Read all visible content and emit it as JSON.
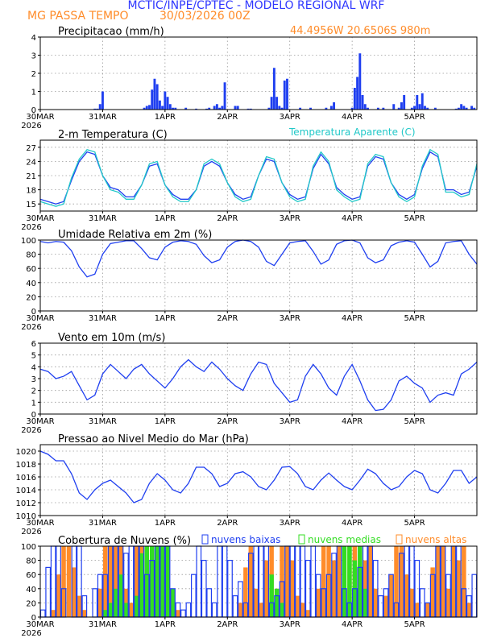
{
  "header": {
    "title": "MCTIC/INPE/CPTEC - MODELO REGIONAL WRF",
    "location": "MG PASSA TEMPO",
    "run": "30/03/2026 00Z",
    "coords": "44.4956W 20.6506S 980m"
  },
  "colors": {
    "title": "#2f37ff",
    "orange": "#ff8c2a",
    "blue": "#1f3ff0",
    "cyan": "#21c8c8",
    "green": "#33dd22",
    "black": "#000000",
    "grid": "#9a9a9a"
  },
  "xaxis": {
    "days": [
      "30MAR",
      "31MAR",
      "1APR",
      "2APR",
      "3APR",
      "4APR",
      "5APR"
    ],
    "year": "2026",
    "hours_total": 168
  },
  "chart_data": [
    {
      "type": "bar",
      "id": "precip",
      "title": "Precipitacao (mm/h)",
      "ylim": [
        0,
        4
      ],
      "yticks": [
        0,
        1,
        2,
        3,
        4
      ],
      "x_hours": [
        21,
        22,
        23,
        24,
        40,
        41,
        42,
        43,
        44,
        45,
        46,
        47,
        48,
        49,
        50,
        51,
        52,
        56,
        60,
        64,
        65,
        67,
        68,
        69,
        70,
        71,
        75,
        76,
        80,
        81,
        88,
        89,
        90,
        91,
        92,
        93,
        94,
        95,
        100,
        104,
        110,
        112,
        113,
        120,
        121,
        122,
        123,
        124,
        125,
        126,
        130,
        132,
        136,
        138,
        139,
        140,
        143,
        144,
        145,
        146,
        147,
        148,
        149,
        152,
        160,
        161,
        162,
        163,
        164,
        166,
        167
      ],
      "values": [
        0.05,
        0.05,
        0.3,
        1.0,
        0.1,
        0.2,
        0.25,
        1.1,
        1.7,
        1.4,
        0.5,
        0.2,
        1.0,
        0.7,
        0.3,
        0.1,
        0.1,
        0.1,
        0.05,
        0.05,
        0.1,
        0.2,
        0.3,
        0.1,
        0.2,
        1.5,
        0.2,
        0.2,
        0.05,
        0.05,
        0.1,
        0.7,
        2.3,
        0.7,
        0.2,
        0.1,
        1.6,
        1.7,
        0.1,
        0.1,
        0.1,
        0.2,
        0.4,
        0.1,
        1.2,
        1.8,
        3.1,
        0.8,
        0.3,
        0.1,
        0.1,
        0.1,
        0.3,
        0.1,
        0.4,
        0.8,
        0.1,
        0.2,
        0.8,
        0.3,
        0.9,
        0.2,
        0.1,
        0.1,
        0.05,
        0.1,
        0.3,
        0.2,
        0.1,
        0.2,
        0.1
      ],
      "color": "#1f3ff0"
    },
    {
      "type": "line",
      "id": "temp",
      "title": "2-m Temperatura (C)",
      "legend": "Temperatura Aparente (C)",
      "ylim": [
        13.5,
        28.5
      ],
      "yticks": [
        15,
        18,
        21,
        24,
        27
      ],
      "series": [
        {
          "name": "2-m Temperatura (C)",
          "color": "#1f3ff0",
          "x": [
            0,
            3,
            6,
            9,
            12,
            15,
            18,
            21,
            24,
            27,
            30,
            33,
            36,
            39,
            42,
            45,
            48,
            51,
            54,
            57,
            60,
            63,
            66,
            69,
            72,
            75,
            78,
            81,
            84,
            87,
            90,
            93,
            96,
            99,
            102,
            105,
            108,
            111,
            114,
            117,
            120,
            123,
            126,
            129,
            132,
            135,
            138,
            141,
            144,
            147,
            150,
            153,
            156,
            159,
            162,
            165,
            168
          ],
          "values": [
            16,
            15.5,
            15,
            15.5,
            20,
            24,
            26,
            25.5,
            21,
            18.5,
            18,
            16.5,
            16.5,
            19,
            23,
            23.5,
            19,
            17,
            16,
            16,
            18,
            23,
            24,
            23,
            19.5,
            17,
            16,
            16.5,
            21,
            24.5,
            24,
            19.5,
            17,
            16,
            16.5,
            22.5,
            25.5,
            23.5,
            18.5,
            17,
            16,
            16.5,
            23,
            25,
            24.5,
            19.5,
            17,
            16,
            17,
            22.5,
            26,
            25,
            18,
            18,
            17,
            17.5,
            23
          ]
        },
        {
          "name": "Temperatura Aparente (C)",
          "color": "#21c8c8",
          "x": [
            0,
            3,
            6,
            9,
            12,
            15,
            18,
            21,
            24,
            27,
            30,
            33,
            36,
            39,
            42,
            45,
            48,
            51,
            54,
            57,
            60,
            63,
            66,
            69,
            72,
            75,
            78,
            81,
            84,
            87,
            90,
            93,
            96,
            99,
            102,
            105,
            108,
            111,
            114,
            117,
            120,
            123,
            126,
            129,
            132,
            135,
            138,
            141,
            144,
            147,
            150,
            153,
            156,
            159,
            162,
            165,
            168
          ],
          "values": [
            15.5,
            15,
            14.5,
            15,
            20.5,
            24.5,
            26.5,
            26,
            21,
            18,
            17.5,
            16,
            16,
            19,
            23.5,
            24,
            19,
            16.5,
            15.5,
            15.5,
            18,
            23.5,
            24.5,
            23.5,
            19.5,
            16.5,
            15.5,
            16,
            21,
            25,
            24.5,
            19.5,
            16.5,
            15.5,
            16,
            23,
            26,
            24,
            18,
            16.5,
            15.5,
            16,
            23.5,
            25.5,
            25,
            19.5,
            16.5,
            15.5,
            16.5,
            23,
            26.5,
            25.5,
            17.5,
            17.5,
            16.5,
            17,
            23.5
          ]
        }
      ]
    },
    {
      "type": "line",
      "id": "umid",
      "title": "Umidade Relativa em 2m (%)",
      "ylim": [
        0,
        100
      ],
      "yticks": [
        0,
        20,
        40,
        60,
        80,
        100
      ],
      "series": [
        {
          "name": "Umidade Relativa em 2m (%)",
          "color": "#1f3ff0",
          "x": [
            0,
            3,
            6,
            9,
            12,
            15,
            18,
            21,
            24,
            27,
            30,
            33,
            36,
            39,
            42,
            45,
            48,
            51,
            54,
            57,
            60,
            63,
            66,
            69,
            72,
            75,
            78,
            81,
            84,
            87,
            90,
            93,
            96,
            99,
            102,
            105,
            108,
            111,
            114,
            117,
            120,
            123,
            126,
            129,
            132,
            135,
            138,
            141,
            144,
            147,
            150,
            153,
            156,
            159,
            162,
            165,
            168
          ],
          "values": [
            98,
            96,
            98,
            97,
            85,
            62,
            48,
            52,
            80,
            95,
            97,
            99,
            99,
            88,
            75,
            72,
            90,
            97,
            99,
            98,
            94,
            78,
            68,
            72,
            90,
            98,
            100,
            98,
            90,
            70,
            64,
            80,
            96,
            98,
            99,
            84,
            66,
            72,
            94,
            99,
            100,
            96,
            75,
            68,
            72,
            92,
            97,
            99,
            97,
            80,
            62,
            70,
            96,
            98,
            99,
            80,
            66
          ]
        }
      ]
    },
    {
      "type": "line",
      "id": "vento",
      "title": "Vento em 10m (m/s)",
      "ylim": [
        0,
        6
      ],
      "yticks": [
        0,
        1,
        2,
        3,
        4,
        5,
        6
      ],
      "series": [
        {
          "name": "Vento em 10m (m/s)",
          "color": "#1f3ff0",
          "x": [
            0,
            3,
            6,
            9,
            12,
            15,
            18,
            21,
            24,
            27,
            30,
            33,
            36,
            39,
            42,
            45,
            48,
            51,
            54,
            57,
            60,
            63,
            66,
            69,
            72,
            75,
            78,
            81,
            84,
            87,
            90,
            93,
            96,
            99,
            102,
            105,
            108,
            111,
            114,
            117,
            120,
            123,
            126,
            129,
            132,
            135,
            138,
            141,
            144,
            147,
            150,
            153,
            156,
            159,
            162,
            165,
            168
          ],
          "values": [
            3.8,
            3.6,
            3.0,
            3.2,
            3.6,
            2.4,
            1.2,
            1.6,
            3.4,
            4.2,
            3.6,
            3.0,
            3.8,
            4.2,
            3.4,
            2.8,
            2.2,
            3.0,
            4.0,
            4.6,
            4.0,
            3.6,
            4.4,
            3.8,
            3.0,
            2.4,
            2.0,
            3.4,
            4.4,
            4.2,
            2.6,
            1.8,
            1.0,
            1.2,
            3.2,
            4.2,
            3.4,
            2.2,
            1.6,
            3.2,
            4.2,
            2.8,
            1.2,
            0.3,
            0.4,
            1.2,
            2.8,
            3.2,
            2.6,
            2.2,
            1.0,
            1.6,
            1.8,
            1.6,
            3.4,
            3.8,
            4.4
          ]
        }
      ]
    },
    {
      "type": "line",
      "id": "pressao",
      "title": "Pressao ao Nivel Medio do Mar (hPa)",
      "ylim": [
        1010,
        1021
      ],
      "yticks": [
        1010,
        1012,
        1014,
        1016,
        1018,
        1020
      ],
      "series": [
        {
          "name": "Pressao ao Nivel Medio do Mar (hPa)",
          "color": "#1f3ff0",
          "x": [
            0,
            3,
            6,
            9,
            12,
            15,
            18,
            21,
            24,
            27,
            30,
            33,
            36,
            39,
            42,
            45,
            48,
            51,
            54,
            57,
            60,
            63,
            66,
            69,
            72,
            75,
            78,
            81,
            84,
            87,
            90,
            93,
            96,
            99,
            102,
            105,
            108,
            111,
            114,
            117,
            120,
            123,
            126,
            129,
            132,
            135,
            138,
            141,
            144,
            147,
            150,
            153,
            156,
            159,
            162,
            165,
            168
          ],
          "values": [
            1020,
            1019.5,
            1018.5,
            1018.5,
            1016.5,
            1013.5,
            1012.5,
            1014,
            1015,
            1015.5,
            1014.5,
            1013.5,
            1012,
            1012.5,
            1015,
            1016.5,
            1015.5,
            1014,
            1013.5,
            1015,
            1017.5,
            1017.5,
            1016.5,
            1014.5,
            1015,
            1016.5,
            1016.8,
            1016,
            1014.5,
            1014,
            1015.5,
            1017.5,
            1017.6,
            1016.5,
            1014.5,
            1014,
            1015.5,
            1016.6,
            1015.5,
            1014.5,
            1014,
            1015.5,
            1017.2,
            1016.5,
            1015,
            1014,
            1014.5,
            1016,
            1017,
            1016.5,
            1014,
            1013.5,
            1015,
            1017,
            1017,
            1015,
            1016
          ]
        }
      ]
    },
    {
      "type": "bar",
      "id": "nuvens",
      "title": "Cobertura de Nuvens (%)",
      "ylim": [
        0,
        100
      ],
      "yticks": [
        0,
        20,
        40,
        60,
        80,
        100
      ],
      "legend": [
        "nuvens baixas",
        "nuvens medias",
        "nuvens altas"
      ],
      "x_hours": [
        0,
        2,
        4,
        6,
        8,
        10,
        12,
        14,
        16,
        18,
        20,
        22,
        24,
        26,
        28,
        30,
        32,
        34,
        36,
        38,
        40,
        42,
        44,
        46,
        48,
        50,
        52,
        54,
        56,
        58,
        60,
        62,
        64,
        66,
        68,
        70,
        72,
        74,
        76,
        78,
        80,
        82,
        84,
        86,
        88,
        90,
        92,
        94,
        96,
        98,
        100,
        102,
        104,
        106,
        108,
        110,
        112,
        114,
        116,
        118,
        120,
        122,
        124,
        126,
        128,
        130,
        132,
        134,
        136,
        138,
        140,
        142,
        144,
        146,
        148,
        150,
        152,
        154,
        156,
        158,
        160,
        162,
        164,
        166
      ],
      "series": [
        {
          "name": "nuvens altas",
          "color": "#ff8c2a",
          "values": [
            0,
            0,
            10,
            60,
            100,
            100,
            70,
            30,
            10,
            0,
            0,
            40,
            100,
            100,
            100,
            100,
            40,
            20,
            100,
            100,
            100,
            100,
            60,
            100,
            100,
            30,
            10,
            0,
            0,
            0,
            0,
            0,
            0,
            0,
            0,
            0,
            0,
            0,
            20,
            70,
            100,
            40,
            20,
            80,
            100,
            40,
            100,
            100,
            80,
            30,
            20,
            10,
            0,
            40,
            100,
            100,
            80,
            100,
            40,
            100,
            100,
            100,
            80,
            100,
            40,
            0,
            30,
            60,
            100,
            100,
            60,
            40,
            20,
            0,
            20,
            70,
            100,
            100,
            40,
            100,
            80,
            100,
            20,
            0
          ]
        },
        {
          "name": "nuvens medias",
          "color": "#33dd22",
          "values": [
            0,
            0,
            0,
            0,
            0,
            0,
            0,
            0,
            0,
            0,
            0,
            0,
            10,
            20,
            40,
            60,
            20,
            0,
            30,
            90,
            100,
            100,
            100,
            100,
            100,
            40,
            0,
            0,
            0,
            0,
            0,
            0,
            0,
            0,
            0,
            0,
            0,
            0,
            0,
            0,
            0,
            0,
            0,
            0,
            60,
            40,
            20,
            0,
            0,
            0,
            0,
            0,
            0,
            0,
            0,
            0,
            0,
            0,
            100,
            100,
            80,
            100,
            40,
            0,
            0,
            0,
            0,
            0,
            0,
            0,
            0,
            0,
            0,
            0,
            0,
            0,
            0,
            0,
            0,
            0,
            0,
            0,
            0,
            0
          ]
        },
        {
          "name": "nuvens baixas",
          "color": "#1f3ff0",
          "values": [
            10,
            70,
            100,
            100,
            40,
            0,
            100,
            100,
            30,
            0,
            40,
            60,
            60,
            100,
            100,
            100,
            90,
            100,
            100,
            100,
            60,
            80,
            100,
            100,
            100,
            40,
            20,
            10,
            20,
            60,
            100,
            80,
            40,
            20,
            100,
            100,
            80,
            30,
            50,
            20,
            90,
            100,
            100,
            100,
            20,
            30,
            50,
            100,
            100,
            100,
            100,
            80,
            100,
            60,
            40,
            60,
            90,
            100,
            40,
            20,
            40,
            70,
            100,
            100,
            80,
            30,
            40,
            60,
            20,
            90,
            100,
            100,
            80,
            40,
            20,
            60,
            100,
            100,
            60,
            100,
            100,
            40,
            30,
            60
          ]
        }
      ]
    }
  ]
}
